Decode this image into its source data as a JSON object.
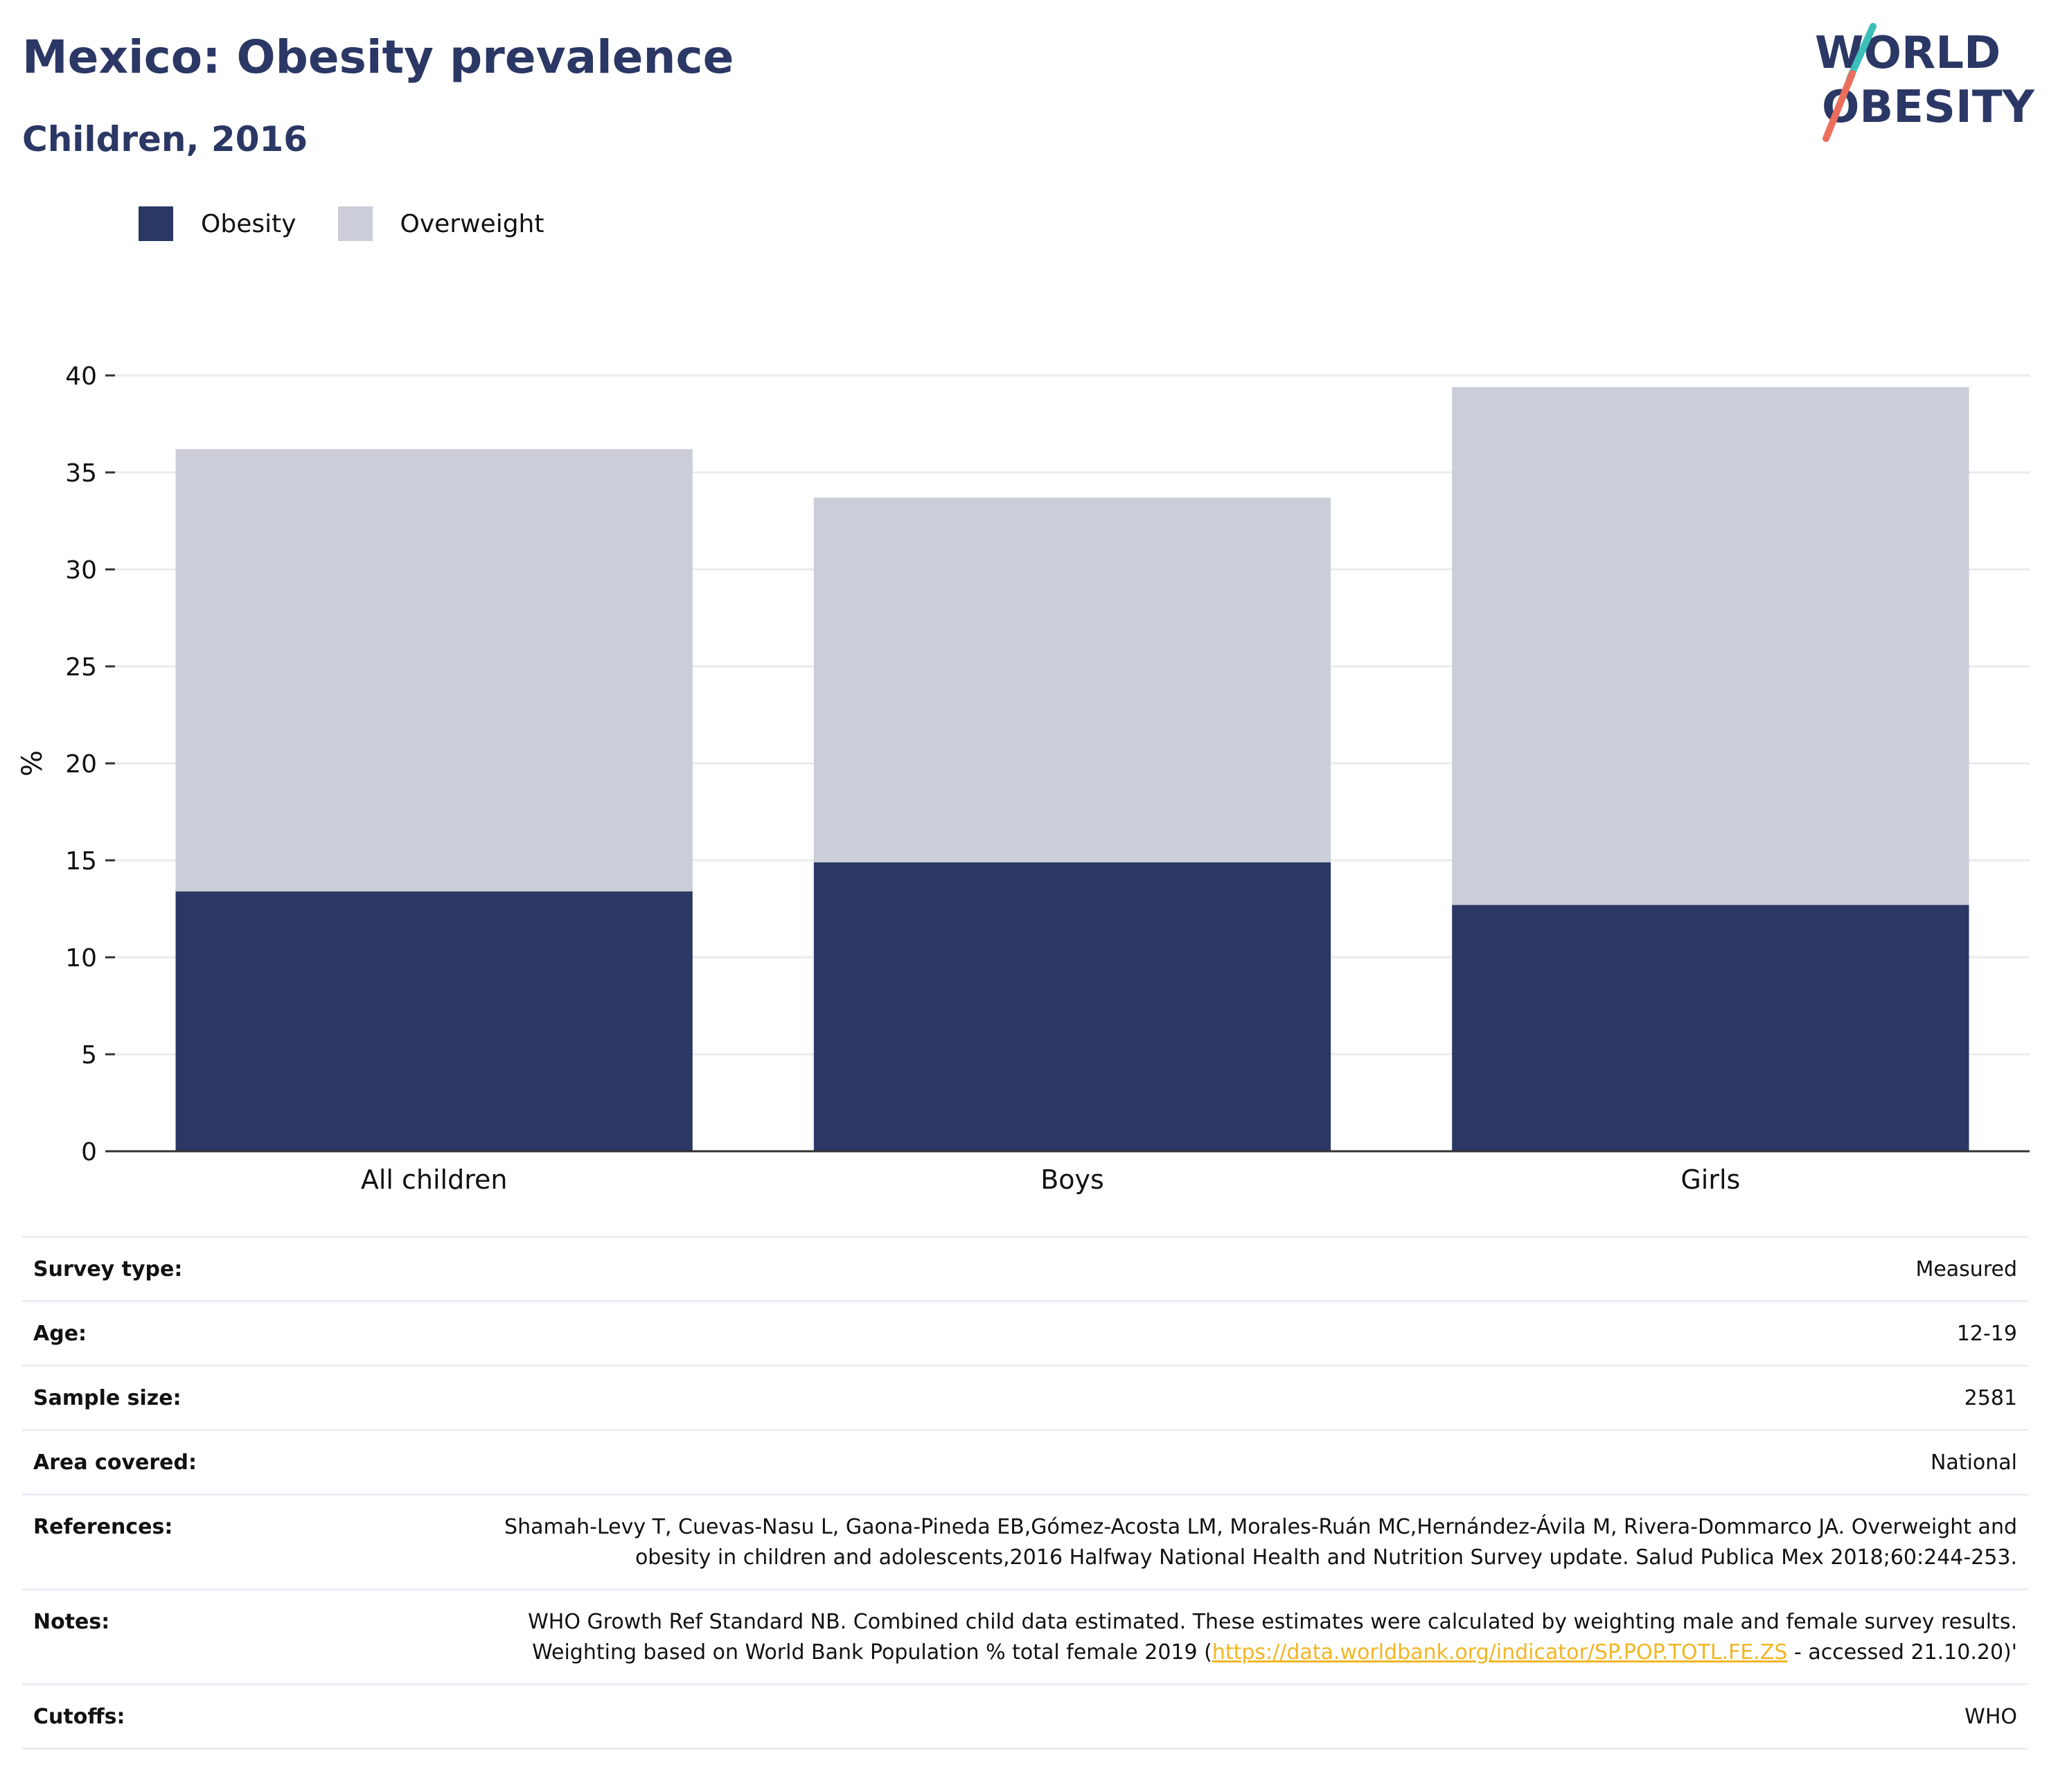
{
  "header": {
    "title": "Mexico: Obesity prevalence",
    "subtitle": "Children, 2016"
  },
  "logo": {
    "line1": "WORLD",
    "line2": "OBESITY"
  },
  "legend": [
    {
      "label": "Obesity",
      "color": "#2b3764"
    },
    {
      "label": "Overweight",
      "color": "#cbcdd8"
    }
  ],
  "chart_data": {
    "type": "bar",
    "stacked": true,
    "categories": [
      "All children",
      "Boys",
      "Girls"
    ],
    "series": [
      {
        "name": "Obesity",
        "values": [
          13.4,
          14.9,
          12.7
        ],
        "color": "#2b3764"
      },
      {
        "name": "Overweight",
        "values": [
          22.8,
          18.8,
          26.7
        ],
        "color": "#cbcdd8"
      }
    ],
    "ylabel": "%",
    "ylim": [
      0,
      40
    ],
    "yticks": [
      0,
      5,
      10,
      15,
      20,
      25,
      30,
      35,
      40
    ],
    "grid": true,
    "legend_position": "top-left"
  },
  "info_rows": [
    {
      "label": "Survey type:",
      "value": "Measured"
    },
    {
      "label": "Age:",
      "value": "12-19"
    },
    {
      "label": "Sample size:",
      "value": "2581"
    },
    {
      "label": "Area covered:",
      "value": "National"
    },
    {
      "label": "References:",
      "value": "Shamah-Levy T, Cuevas-Nasu L, Gaona-Pineda EB,Gómez-Acosta LM, Morales-Ruán MC,Hernández-Ávila M, Rivera-Dommarco JA. Overweight and obesity in children and adolescents,2016 Halfway National Health and Nutrition Survey update. Salud Publica Mex 2018;60:244-253."
    },
    {
      "label": "Notes:",
      "value_before": "WHO Growth Ref Standard NB. Combined child data estimated. These estimates were calculated by weighting male and female survey results. Weighting based on World Bank Population % total female 2019 (",
      "link": "https://data.worldbank.org/indicator/SP.POP.TOTL.FE.ZS",
      "value_after": " - accessed 21.10.20)'"
    },
    {
      "label": "Cutoffs:",
      "value": "WHO"
    }
  ]
}
